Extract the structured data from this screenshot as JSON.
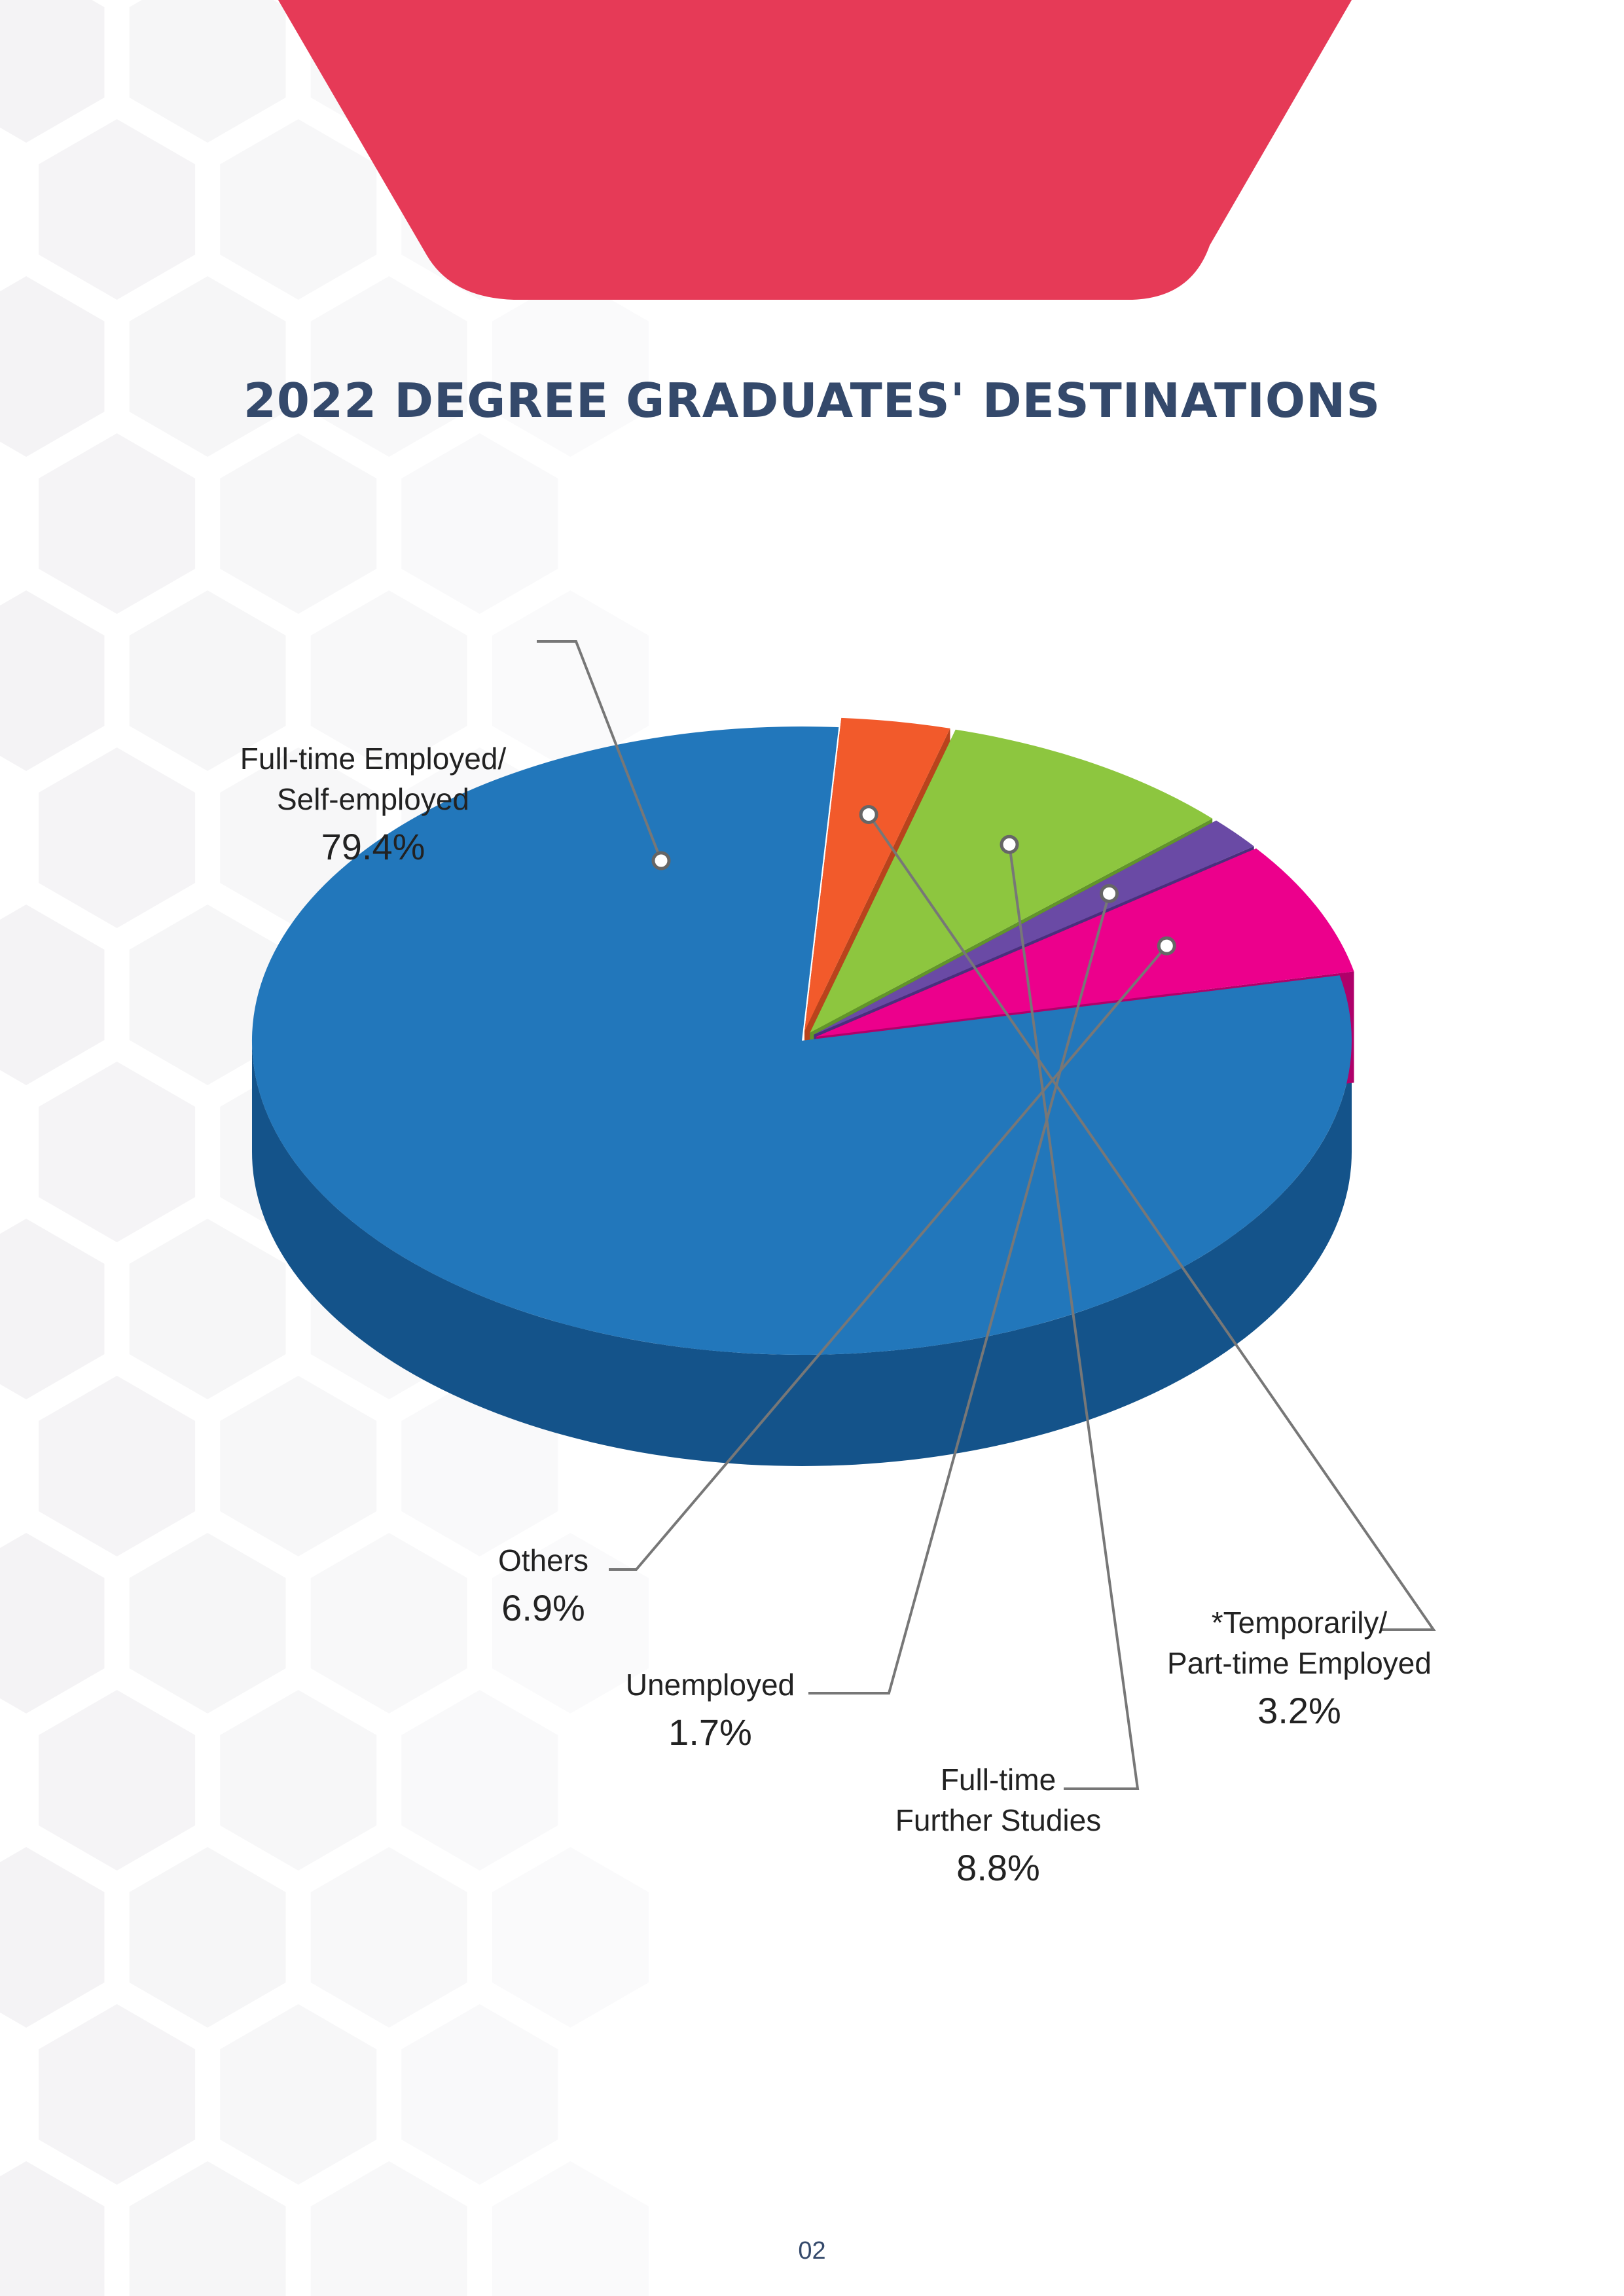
{
  "page": {
    "title": "2022 DEGREE GRADUATES' DESTINATIONS",
    "page_number": "02"
  },
  "colors": {
    "banner": "#e63a57",
    "title": "#34496b",
    "hex_background": "#f4f3f5"
  },
  "chart_data": {
    "type": "pie",
    "title": "2022 DEGREE GRADUATES' DESTINATIONS",
    "unit": "%",
    "slices": [
      {
        "label_lines": [
          "Full-time Employed/",
          "Self-employed"
        ],
        "value": 79.4,
        "display": "79.4%",
        "color": "#2277bb",
        "side": "#14538a",
        "exploded": false
      },
      {
        "label_lines": [
          "*Temporarily/",
          "Part-time Employed"
        ],
        "value": 3.2,
        "display": "3.2%",
        "color": "#f25a2b",
        "side": "#b9431c",
        "exploded": true
      },
      {
        "label_lines": [
          "Full-time",
          "Further Studies"
        ],
        "value": 8.8,
        "display": "8.8%",
        "color": "#8dc63f",
        "side": "#62952a",
        "exploded": true
      },
      {
        "label_lines": [
          "Unemployed"
        ],
        "value": 1.7,
        "display": "1.7%",
        "color": "#6a4aa5",
        "side": "#4a2f7d",
        "exploded": true
      },
      {
        "label_lines": [
          "Others"
        ],
        "value": 6.9,
        "display": "6.9%",
        "color": "#ec008c",
        "side": "#b0006a",
        "exploded": true
      }
    ]
  }
}
